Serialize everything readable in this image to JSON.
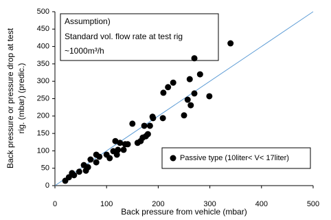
{
  "chart_data": {
    "type": "scatter",
    "xlabel": "Back pressure from vehicle (mbar)",
    "ylabel": [
      "Back pressure or pressure drop at test",
      "rig. (mbar) (predic.)"
    ],
    "annotation": [
      "Assumption)",
      "Standard vol. flow rate at  test rig",
      "~1000m³/h"
    ],
    "xlim": [
      0,
      500
    ],
    "ylim": [
      0,
      500
    ],
    "xticks": [
      0,
      100,
      200,
      300,
      400,
      500
    ],
    "yticks": [
      0,
      50,
      100,
      150,
      200,
      250,
      300,
      350,
      400,
      450,
      500
    ],
    "diagonal_color": "#5b9bd5",
    "legend": "lower right",
    "series": [
      {
        "name": "Passive type  (10liter< V< 17liter)",
        "color": "#000000",
        "x": [
          20,
          27,
          33,
          37,
          47,
          56,
          60,
          64,
          69,
          80,
          80,
          86,
          100,
          106,
          113,
          117,
          120,
          122,
          126,
          133,
          136,
          141,
          150,
          160,
          166,
          170,
          176,
          173,
          180,
          184,
          189,
          190,
          209,
          210,
          219,
          229,
          250,
          257,
          261,
          263,
          270,
          270,
          281,
          299,
          340
        ],
        "values": [
          14,
          24,
          36,
          30,
          40,
          59,
          43,
          53,
          75,
          67,
          89,
          83,
          89,
          79,
          99,
          128,
          89,
          103,
          123,
          103,
          119,
          119,
          178,
          123,
          128,
          138,
          142,
          172,
          148,
          172,
          198,
          194,
          194,
          267,
          283,
          296,
          202,
          247,
          306,
          231,
          265,
          366,
          320,
          257,
          409
        ]
      }
    ]
  }
}
